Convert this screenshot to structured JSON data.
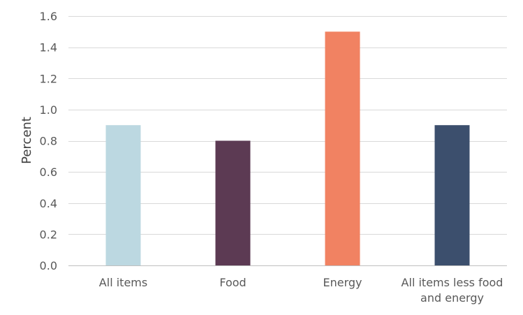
{
  "chart_data": {
    "type": "bar",
    "title": "",
    "xlabel": "",
    "ylabel": "Percent",
    "ylim": [
      0,
      1.6
    ],
    "yticks": [
      "0.0",
      "0.2",
      "0.4",
      "0.6",
      "0.8",
      "1.0",
      "1.2",
      "1.4",
      "1.6"
    ],
    "ytick_values": [
      0,
      0.2,
      0.4,
      0.6,
      0.8,
      1.0,
      1.2,
      1.4,
      1.6
    ],
    "grid": true,
    "legend": "none",
    "categories": [
      [
        "All items"
      ],
      [
        "Food"
      ],
      [
        "Energy"
      ],
      [
        "All items less food",
        "and energy"
      ]
    ],
    "values": [
      0.9,
      0.8,
      1.5,
      0.9
    ],
    "colors": [
      "#bcd8e1",
      "#5c3a53",
      "#f18262",
      "#3c4f6d"
    ]
  }
}
